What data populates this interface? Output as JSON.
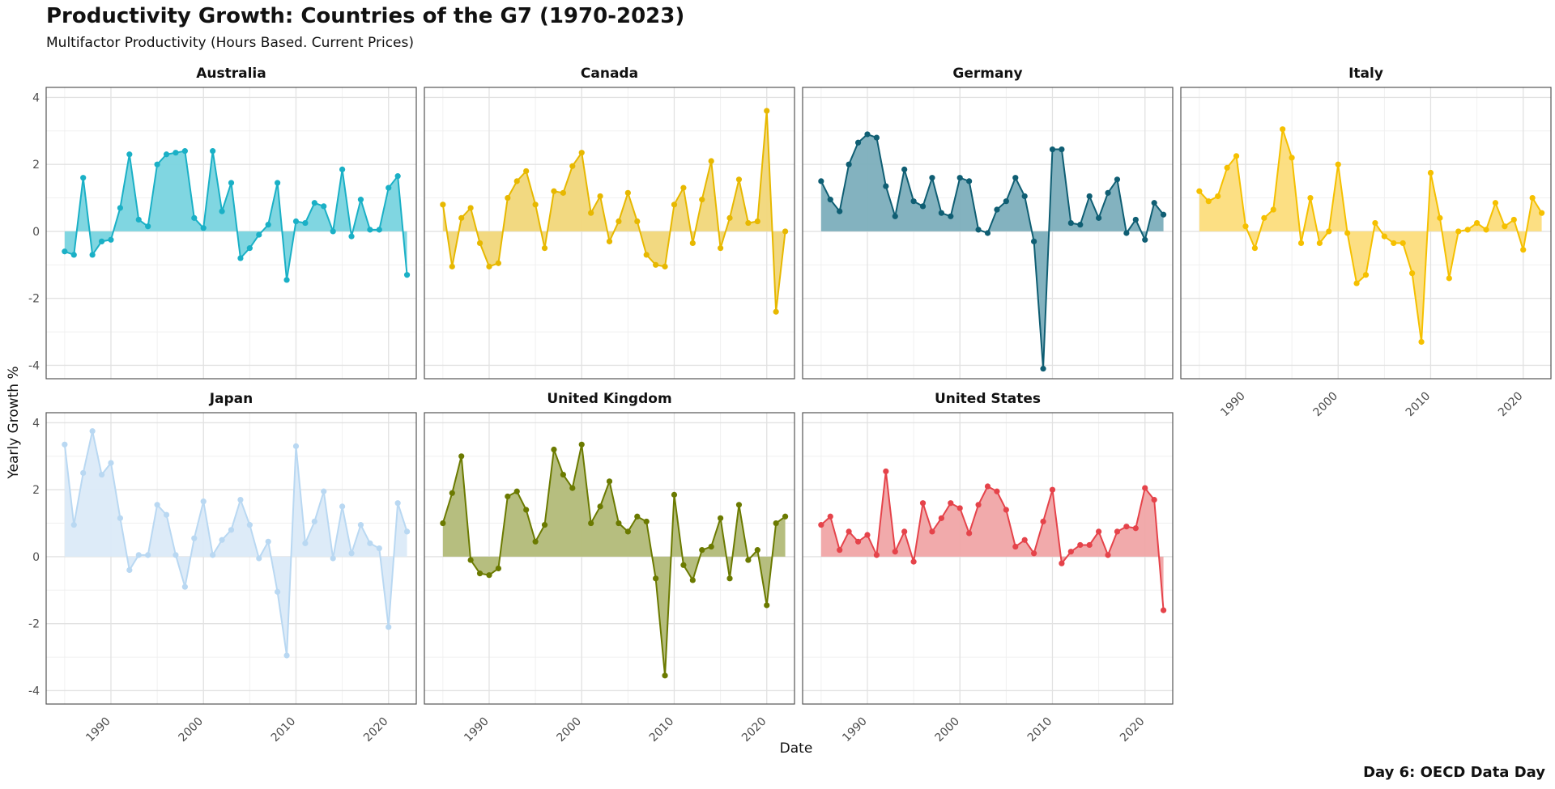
{
  "chart_data": {
    "type": "area",
    "title": "Productivity Growth: Countries of the G7 (1970-2023)",
    "subtitle": "Multifactor Productivity (Hours Based. Current Prices)",
    "xlabel": "Date",
    "ylabel": "Yearly Growth %",
    "caption": "Day 6: OECD Data Day",
    "xlim": [
      1983,
      2023
    ],
    "ylim": [
      -4.4,
      4.3
    ],
    "x_ticks": [
      1990,
      2000,
      2010,
      2020
    ],
    "y_ticks": [
      -4,
      -2,
      0,
      2,
      4
    ],
    "grid": true,
    "legend": "none",
    "x": [
      1985,
      1986,
      1987,
      1988,
      1989,
      1990,
      1991,
      1992,
      1993,
      1994,
      1995,
      1996,
      1997,
      1998,
      1999,
      2000,
      2001,
      2002,
      2003,
      2004,
      2005,
      2006,
      2007,
      2008,
      2009,
      2010,
      2011,
      2012,
      2013,
      2014,
      2015,
      2016,
      2017,
      2018,
      2019,
      2020,
      2021,
      2022
    ],
    "series": [
      {
        "name": "Australia",
        "color": "#1ab0c6",
        "fill": "#79d4df",
        "values": [
          -0.6,
          -0.7,
          1.6,
          -0.7,
          -0.3,
          -0.25,
          0.7,
          2.3,
          0.35,
          0.15,
          2.0,
          2.3,
          2.35,
          2.4,
          0.4,
          0.1,
          2.4,
          0.6,
          1.45,
          -0.8,
          -0.5,
          -0.1,
          0.2,
          1.45,
          -1.45,
          0.3,
          0.25,
          0.85,
          0.75,
          0.0,
          1.85,
          -0.15,
          0.95,
          0.05,
          0.05,
          1.3,
          1.65,
          -1.3
        ]
      },
      {
        "name": "Canada",
        "color": "#e7b800",
        "fill": "#f1d77a",
        "values": [
          0.8,
          -1.05,
          0.4,
          0.7,
          -0.35,
          -1.05,
          -0.95,
          1.0,
          1.5,
          1.8,
          0.8,
          -0.5,
          1.2,
          1.15,
          1.95,
          2.35,
          0.55,
          1.05,
          -0.3,
          0.3,
          1.15,
          0.3,
          -0.7,
          -1.0,
          -1.05,
          0.8,
          1.3,
          -0.35,
          0.95,
          2.1,
          -0.5,
          0.4,
          1.55,
          0.25,
          0.3,
          3.6,
          -2.4,
          0.0
        ]
      },
      {
        "name": "Germany",
        "color": "#0f5e73",
        "fill": "#7caebc",
        "values": [
          1.5,
          0.95,
          0.6,
          2.0,
          2.65,
          2.9,
          2.8,
          1.35,
          0.45,
          1.85,
          0.9,
          0.75,
          1.6,
          0.55,
          0.45,
          1.6,
          1.5,
          0.05,
          -0.05,
          0.65,
          0.9,
          1.6,
          1.05,
          -0.3,
          -4.1,
          2.45,
          2.45,
          0.25,
          0.2,
          1.05,
          0.4,
          1.15,
          1.55,
          -0.05,
          0.35,
          -0.25,
          0.85,
          0.5
        ]
      },
      {
        "name": "Italy",
        "color": "#f5c000",
        "fill": "#fcdd7c",
        "values": [
          1.2,
          0.9,
          1.05,
          1.9,
          2.25,
          0.15,
          -0.5,
          0.4,
          0.65,
          3.05,
          2.2,
          -0.35,
          1.0,
          -0.35,
          0.0,
          2.0,
          -0.05,
          -1.55,
          -1.3,
          0.25,
          -0.15,
          -0.35,
          -0.35,
          -1.25,
          -3.3,
          1.75,
          0.4,
          -1.4,
          0.0,
          0.05,
          0.25,
          0.05,
          0.85,
          0.15,
          0.35,
          -0.55,
          1.0,
          0.55
        ]
      },
      {
        "name": "Japan",
        "color": "#b9d8f2",
        "fill": "#dbeaf8",
        "values": [
          3.35,
          0.95,
          2.5,
          3.75,
          2.45,
          2.8,
          1.15,
          -0.4,
          0.05,
          0.05,
          1.55,
          1.25,
          0.05,
          -0.9,
          0.55,
          1.65,
          0.05,
          0.5,
          0.8,
          1.7,
          0.95,
          -0.05,
          0.45,
          -1.05,
          -2.95,
          3.3,
          0.4,
          1.05,
          1.95,
          -0.05,
          1.5,
          0.1,
          0.95,
          0.4,
          0.25,
          -2.1,
          1.6,
          0.75
        ]
      },
      {
        "name": "United Kingdom",
        "color": "#6b7a00",
        "fill": "#b2bb78",
        "values": [
          1.0,
          1.9,
          3.0,
          -0.1,
          -0.5,
          -0.55,
          -0.35,
          1.8,
          1.95,
          1.4,
          0.45,
          0.95,
          3.2,
          2.45,
          2.05,
          3.35,
          1.0,
          1.5,
          2.25,
          1.0,
          0.75,
          1.2,
          1.05,
          -0.65,
          -3.55,
          1.85,
          -0.25,
          -0.7,
          0.2,
          0.3,
          1.15,
          -0.65,
          1.55,
          -0.1,
          0.2,
          -1.45,
          1.0,
          1.2
        ]
      },
      {
        "name": "United States",
        "color": "#e5434a",
        "fill": "#f0a5a7",
        "values": [
          0.95,
          1.2,
          0.2,
          0.75,
          0.45,
          0.65,
          0.05,
          2.55,
          0.15,
          0.75,
          -0.15,
          1.6,
          0.75,
          1.15,
          1.6,
          1.45,
          0.7,
          1.55,
          2.1,
          1.95,
          1.4,
          0.3,
          0.5,
          0.1,
          1.05,
          2.0,
          -0.2,
          0.15,
          0.35,
          0.35,
          0.75,
          0.05,
          0.75,
          0.9,
          0.85,
          2.05,
          1.7,
          -1.6
        ]
      }
    ]
  }
}
